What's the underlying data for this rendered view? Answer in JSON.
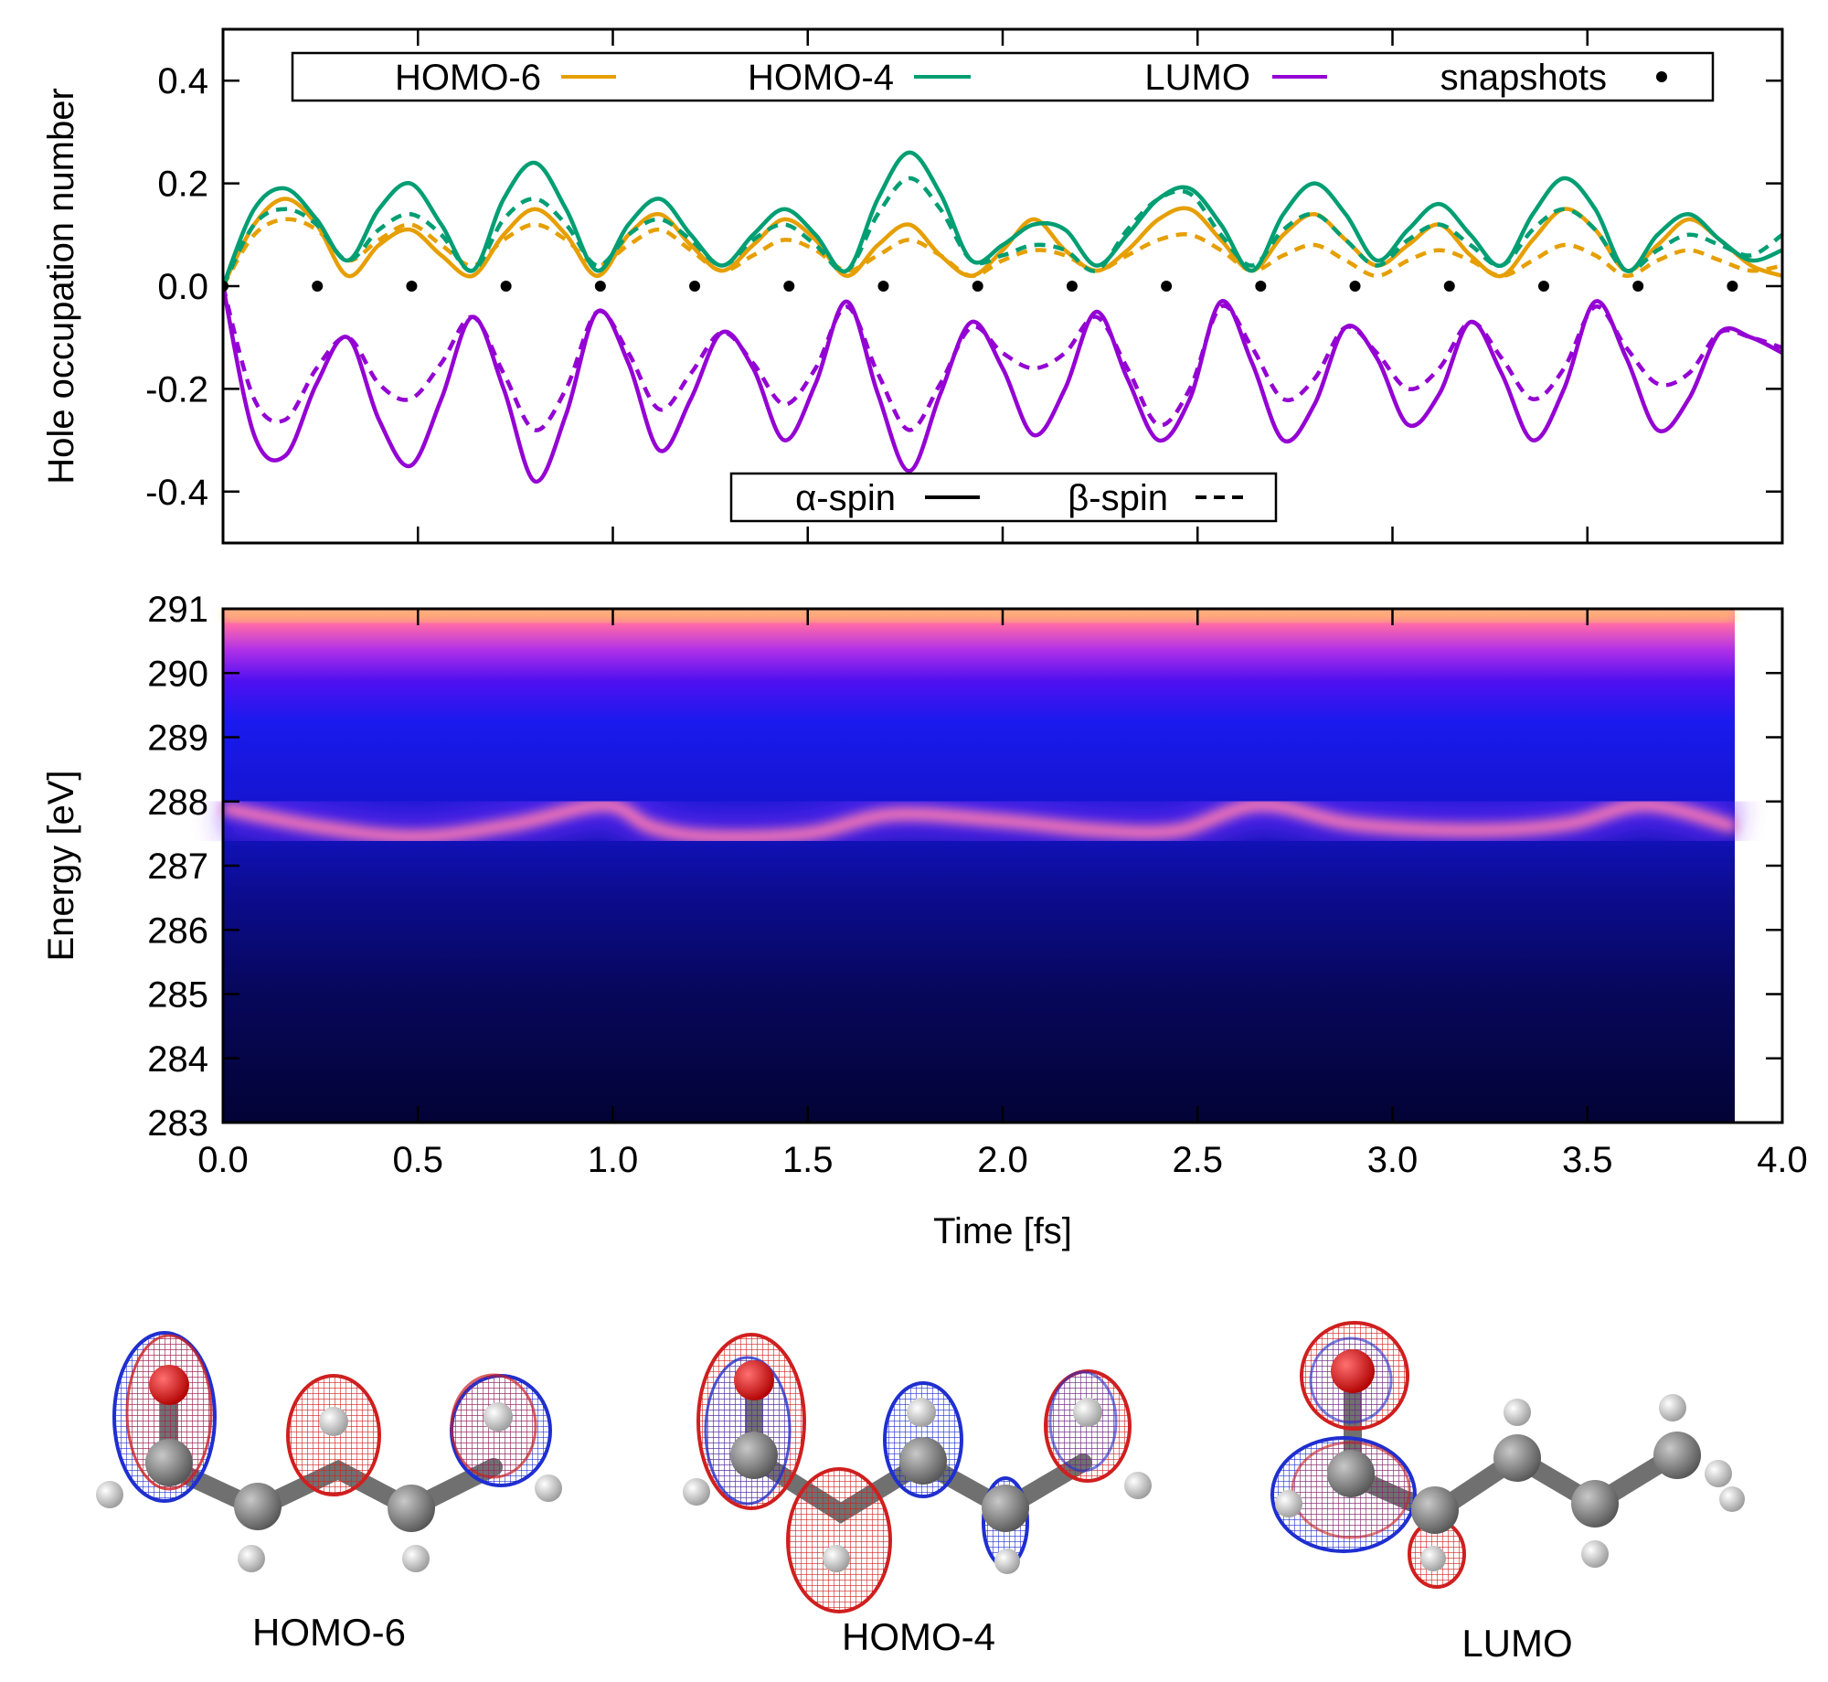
{
  "chart_data": [
    {
      "type": "line",
      "ylabel": "Hole occupation number",
      "xlim": [
        0,
        4
      ],
      "ylim": [
        -0.5,
        0.5
      ],
      "yticks": [
        "0.4",
        "0.2",
        "0.0",
        "-0.2",
        "-0.4"
      ],
      "legend_orbitals": {
        "placement": "top",
        "entries": [
          {
            "name": "HOMO-6",
            "color": "#e69f00"
          },
          {
            "name": "HOMO-4",
            "color": "#009e73"
          },
          {
            "name": "LUMO",
            "color": "#9400d3"
          },
          {
            "name": "snapshots",
            "color": "#000000"
          }
        ]
      },
      "legend_spin": {
        "placement": "bottom-center",
        "entries": [
          {
            "name": "α-spin",
            "style": "solid"
          },
          {
            "name": "β-spin",
            "style": "dashed"
          }
        ]
      },
      "x": [
        0.0,
        0.08,
        0.16,
        0.24,
        0.32,
        0.4,
        0.48,
        0.56,
        0.64,
        0.72,
        0.8,
        0.88,
        0.96,
        1.04,
        1.12,
        1.2,
        1.28,
        1.36,
        1.44,
        1.52,
        1.6,
        1.68,
        1.76,
        1.84,
        1.92,
        2.0,
        2.08,
        2.16,
        2.24,
        2.32,
        2.4,
        2.48,
        2.56,
        2.64,
        2.72,
        2.8,
        2.88,
        2.96,
        3.04,
        3.12,
        3.2,
        3.28,
        3.36,
        3.44,
        3.52,
        3.6,
        3.68,
        3.76,
        3.84,
        3.92,
        4.0
      ],
      "series": [
        {
          "name": "HOMO-6",
          "spin": "α-spin",
          "color": "#e69f00",
          "values": [
            0.0,
            0.12,
            0.17,
            0.12,
            0.02,
            0.08,
            0.11,
            0.06,
            0.02,
            0.1,
            0.15,
            0.1,
            0.02,
            0.1,
            0.14,
            0.08,
            0.03,
            0.08,
            0.13,
            0.09,
            0.02,
            0.08,
            0.12,
            0.06,
            0.02,
            0.07,
            0.13,
            0.07,
            0.03,
            0.07,
            0.13,
            0.15,
            0.09,
            0.03,
            0.1,
            0.14,
            0.09,
            0.04,
            0.08,
            0.12,
            0.06,
            0.02,
            0.09,
            0.15,
            0.11,
            0.03,
            0.08,
            0.13,
            0.09,
            0.04,
            0.02
          ]
        },
        {
          "name": "HOMO-6",
          "spin": "β-spin",
          "color": "#e69f00",
          "values": [
            0.0,
            0.1,
            0.13,
            0.11,
            0.05,
            0.09,
            0.12,
            0.08,
            0.04,
            0.09,
            0.12,
            0.09,
            0.04,
            0.08,
            0.11,
            0.07,
            0.03,
            0.06,
            0.09,
            0.07,
            0.03,
            0.06,
            0.09,
            0.06,
            0.02,
            0.05,
            0.07,
            0.06,
            0.03,
            0.06,
            0.09,
            0.1,
            0.07,
            0.03,
            0.06,
            0.08,
            0.05,
            0.02,
            0.05,
            0.07,
            0.05,
            0.02,
            0.05,
            0.08,
            0.06,
            0.02,
            0.05,
            0.07,
            0.05,
            0.03,
            0.04
          ]
        },
        {
          "name": "HOMO-4",
          "spin": "α-spin",
          "color": "#009e73",
          "values": [
            0.0,
            0.15,
            0.19,
            0.13,
            0.05,
            0.15,
            0.2,
            0.12,
            0.03,
            0.17,
            0.24,
            0.15,
            0.03,
            0.12,
            0.17,
            0.1,
            0.04,
            0.1,
            0.15,
            0.1,
            0.03,
            0.17,
            0.26,
            0.18,
            0.05,
            0.08,
            0.12,
            0.11,
            0.04,
            0.1,
            0.17,
            0.19,
            0.12,
            0.03,
            0.14,
            0.2,
            0.14,
            0.05,
            0.11,
            0.16,
            0.1,
            0.04,
            0.14,
            0.21,
            0.15,
            0.03,
            0.1,
            0.14,
            0.09,
            0.05,
            0.07
          ]
        },
        {
          "name": "HOMO-4",
          "spin": "β-spin",
          "color": "#009e73",
          "values": [
            0.0,
            0.12,
            0.15,
            0.12,
            0.05,
            0.11,
            0.14,
            0.1,
            0.03,
            0.13,
            0.17,
            0.12,
            0.04,
            0.1,
            0.13,
            0.09,
            0.04,
            0.09,
            0.12,
            0.08,
            0.03,
            0.14,
            0.21,
            0.15,
            0.05,
            0.06,
            0.08,
            0.07,
            0.03,
            0.11,
            0.17,
            0.18,
            0.1,
            0.04,
            0.11,
            0.14,
            0.09,
            0.04,
            0.09,
            0.12,
            0.08,
            0.04,
            0.11,
            0.15,
            0.11,
            0.03,
            0.07,
            0.1,
            0.08,
            0.06,
            0.1
          ]
        },
        {
          "name": "LUMO",
          "spin": "α-spin",
          "color": "#9400d3",
          "values": [
            0.0,
            -0.29,
            -0.33,
            -0.19,
            -0.1,
            -0.26,
            -0.35,
            -0.22,
            -0.06,
            -0.2,
            -0.38,
            -0.25,
            -0.05,
            -0.15,
            -0.32,
            -0.22,
            -0.09,
            -0.16,
            -0.3,
            -0.19,
            -0.03,
            -0.21,
            -0.36,
            -0.21,
            -0.07,
            -0.16,
            -0.29,
            -0.2,
            -0.05,
            -0.18,
            -0.3,
            -0.22,
            -0.03,
            -0.15,
            -0.3,
            -0.23,
            -0.08,
            -0.14,
            -0.27,
            -0.21,
            -0.07,
            -0.17,
            -0.3,
            -0.2,
            -0.03,
            -0.14,
            -0.28,
            -0.22,
            -0.09,
            -0.1,
            -0.13
          ]
        },
        {
          "name": "LUMO",
          "spin": "β-spin",
          "color": "#9400d3",
          "values": [
            0.0,
            -0.22,
            -0.26,
            -0.16,
            -0.1,
            -0.19,
            -0.22,
            -0.15,
            -0.06,
            -0.17,
            -0.28,
            -0.2,
            -0.05,
            -0.13,
            -0.24,
            -0.17,
            -0.09,
            -0.15,
            -0.23,
            -0.16,
            -0.04,
            -0.17,
            -0.28,
            -0.19,
            -0.08,
            -0.13,
            -0.16,
            -0.13,
            -0.06,
            -0.16,
            -0.27,
            -0.2,
            -0.04,
            -0.12,
            -0.22,
            -0.18,
            -0.08,
            -0.13,
            -0.2,
            -0.16,
            -0.07,
            -0.14,
            -0.22,
            -0.16,
            -0.04,
            -0.12,
            -0.19,
            -0.17,
            -0.09,
            -0.1,
            -0.12
          ]
        }
      ],
      "snapshots": {
        "name": "snapshots",
        "x": [
          0.0,
          0.242,
          0.484,
          0.726,
          0.968,
          1.21,
          1.452,
          1.694,
          1.936,
          2.178,
          2.42,
          2.662,
          2.904,
          3.146,
          3.388,
          3.63,
          3.872
        ],
        "y": [
          0,
          0,
          0,
          0,
          0,
          0,
          0,
          0,
          0,
          0,
          0,
          0,
          0,
          0,
          0,
          0,
          0
        ]
      }
    },
    {
      "type": "heatmap",
      "xlabel": "Time [fs]",
      "ylabel": "Energy [eV]",
      "xlim": [
        0,
        4
      ],
      "ylim": [
        283,
        291
      ],
      "xticks": [
        "0.0",
        "0.5",
        "1.0",
        "1.5",
        "2.0",
        "2.5",
        "3.0",
        "3.5",
        "4.0"
      ],
      "yticks": [
        "291",
        "290",
        "289",
        "288",
        "287",
        "286",
        "285",
        "284",
        "283"
      ],
      "data_extent_x": [
        0,
        3.88
      ],
      "peak_ridge": {
        "x": [
          0.0,
          0.25,
          0.5,
          0.75,
          0.98,
          1.1,
          1.25,
          1.5,
          1.72,
          2.0,
          2.25,
          2.45,
          2.66,
          2.9,
          3.2,
          3.45,
          3.65,
          3.88
        ],
        "energy": [
          287.9,
          287.6,
          287.45,
          287.65,
          287.95,
          287.6,
          287.45,
          287.5,
          287.8,
          287.7,
          287.55,
          287.55,
          287.95,
          287.65,
          287.55,
          287.65,
          287.95,
          287.6
        ]
      }
    }
  ],
  "orbital_images": [
    {
      "label": "HOMO-6"
    },
    {
      "label": "HOMO-4"
    },
    {
      "label": "LUMO"
    }
  ]
}
